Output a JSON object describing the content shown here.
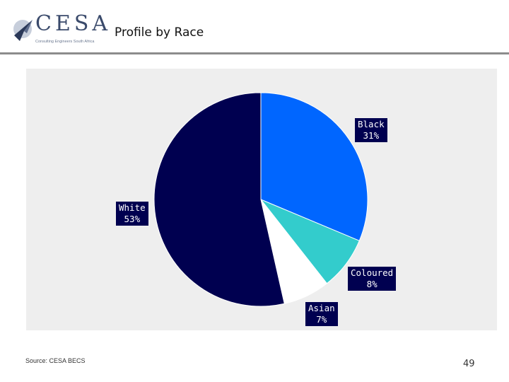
{
  "header": {
    "logo_text": "CESA",
    "logo_subtitle": "Consulting Engineers South Africa",
    "title": "Profile by Race"
  },
  "colors": {
    "Black": "#0066ff",
    "Coloured": "#33cccc",
    "Asian": "#ffffff",
    "White": "#000050",
    "label_bg": "#000050",
    "plot_bg": "#eeeeee"
  },
  "chart_data": {
    "type": "pie",
    "categories": [
      "Black",
      "Coloured",
      "Asian",
      "White"
    ],
    "values": [
      31,
      8,
      7,
      53
    ],
    "value_labels": [
      "31%",
      "8%",
      "7%",
      "53%"
    ],
    "title": "",
    "legend": "none"
  },
  "footer": {
    "source": "Source: CESA BECS",
    "page_number": "49"
  }
}
